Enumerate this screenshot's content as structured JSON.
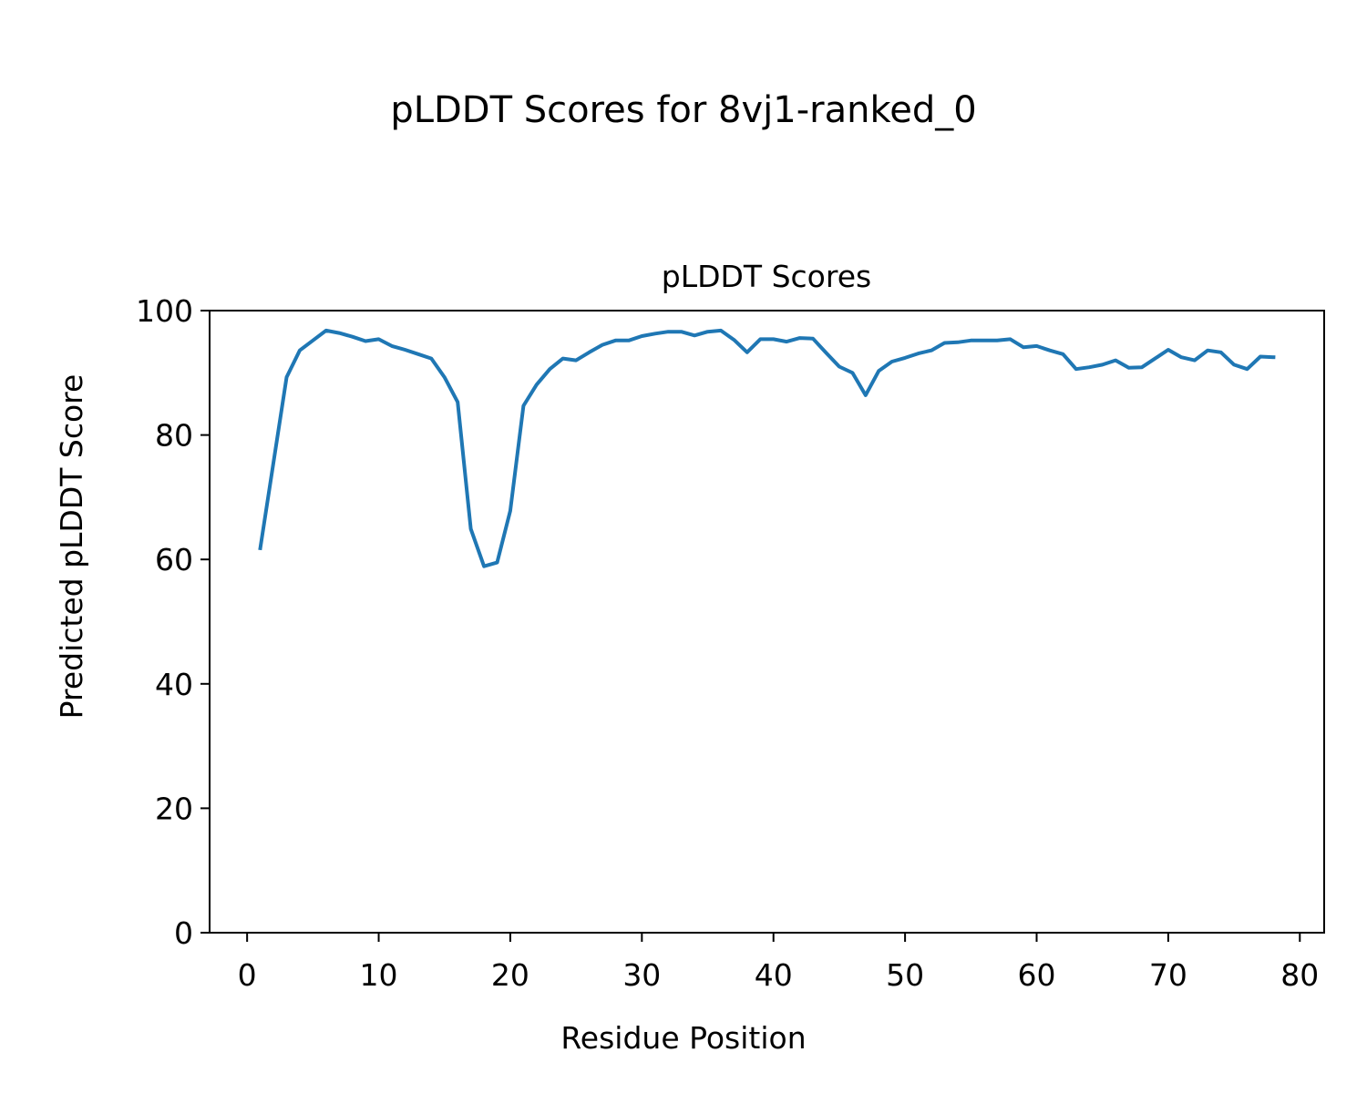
{
  "chart_data": {
    "type": "line",
    "suptitle": "pLDDT Scores for 8vj1-ranked_0",
    "title": "pLDDT Scores",
    "xlabel": "Residue Position",
    "ylabel": "Predicted pLDDT Score",
    "xlim": [
      -2.85,
      81.85
    ],
    "ylim": [
      0,
      100
    ],
    "xticks": [
      0,
      10,
      20,
      30,
      40,
      50,
      60,
      70,
      80
    ],
    "yticks": [
      0,
      20,
      40,
      60,
      80,
      100
    ],
    "grid": false,
    "line_color": "#1f77b4",
    "series": [
      {
        "x": [
          1,
          2,
          3,
          4,
          5,
          6,
          7,
          8,
          9,
          10,
          11,
          12,
          13,
          14,
          15,
          16,
          17,
          18,
          19,
          20,
          21,
          22,
          23,
          24,
          25,
          26,
          27,
          28,
          29,
          30,
          31,
          32,
          33,
          34,
          35,
          36,
          37,
          38,
          39,
          40,
          41,
          42,
          43,
          44,
          45,
          46,
          47,
          48,
          49,
          50,
          51,
          52,
          53,
          54,
          55,
          56,
          57,
          58,
          59,
          60,
          61,
          62,
          63,
          64,
          65,
          66,
          67,
          68,
          69,
          70,
          71,
          72,
          73,
          74,
          75,
          76,
          77,
          78
        ],
        "values": [
          61.8,
          75.5,
          89.3,
          93.6,
          95.2,
          96.8,
          96.4,
          95.8,
          95.1,
          95.4,
          94.3,
          93.7,
          93.0,
          92.3,
          89.3,
          85.3,
          64.9,
          58.9,
          59.5,
          67.8,
          84.7,
          88.1,
          90.6,
          92.3,
          92.0,
          93.3,
          94.5,
          95.2,
          95.2,
          95.9,
          96.3,
          96.6,
          96.6,
          96.0,
          96.6,
          96.8,
          95.3,
          93.3,
          95.4,
          95.4,
          95.0,
          95.6,
          95.5,
          93.2,
          91.0,
          90.0,
          86.4,
          90.3,
          91.8,
          92.4,
          93.1,
          93.6,
          94.8,
          94.9,
          95.2,
          95.2,
          95.2,
          95.4,
          94.1,
          94.3,
          93.6,
          93.0,
          90.6,
          90.9,
          91.3,
          92.0,
          90.8,
          90.9,
          92.3,
          93.7,
          92.5,
          92.0,
          93.6,
          93.3,
          91.3,
          90.6,
          92.6,
          92.5
        ]
      }
    ]
  }
}
